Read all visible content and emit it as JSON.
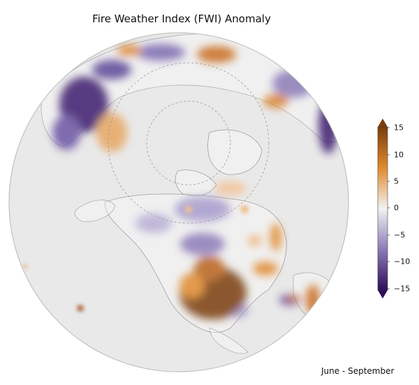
{
  "title": "Fire Weather Index (FWI) Anomaly",
  "season_label": "June - September",
  "colorbar": {
    "ticks": [
      "15",
      "10",
      "5",
      "0",
      "−5",
      "−10",
      "−15"
    ],
    "min": -15,
    "max": 15,
    "colors": {
      "high": "#7a3d0c",
      "mid_high": "#e08a2e",
      "neutral": "#f2f2f2",
      "mid_low": "#8c7bb8",
      "low": "#2d0f5a"
    }
  },
  "map": {
    "projection": "orthographic (north polar / North America)",
    "ocean_color": "#e9e9e9"
  }
}
